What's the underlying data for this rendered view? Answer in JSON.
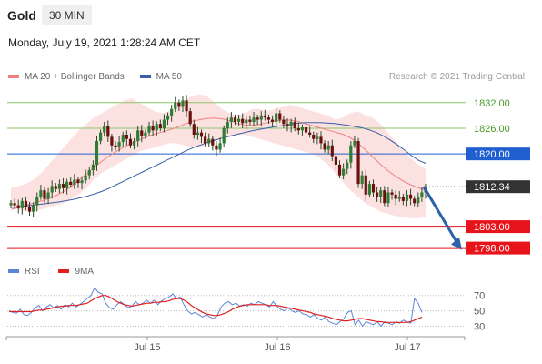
{
  "header": {
    "symbol": "Gold",
    "timeframe": "30 MIN",
    "datetime": "Monday, July 19, 2021 1:28:24 AM CET",
    "credit": "Research © 2021 Trading Central"
  },
  "legend": {
    "bollinger_label": "MA 20 + Bollinger Bands",
    "ma50_label": "MA 50",
    "rsi_label": "RSI",
    "rsi_ma_label": "9MA"
  },
  "colors": {
    "bollinger": "#f08080",
    "ma50": "#3a5fa8",
    "rsi": "#5b86d6",
    "rsi_ma": "#e02020",
    "green_level": "#8cc66a",
    "blue_level": "#1f5fd0",
    "red_level": "#e8141c",
    "current_price": "#333333",
    "arrow": "#2b62a8"
  },
  "chart_data": {
    "type": "candlestick",
    "x_ticks": [
      "Jul 15",
      "Jul 16",
      "Jul 17"
    ],
    "y_range": [
      1796,
      1834.5
    ],
    "levels": [
      {
        "value": 1832.0,
        "label": "1832.00",
        "kind": "resistance"
      },
      {
        "value": 1826.0,
        "label": "1826.00",
        "kind": "resistance"
      },
      {
        "value": 1820.0,
        "label": "1820.00",
        "kind": "pivot"
      },
      {
        "value": 1812.34,
        "label": "1812.34",
        "kind": "current"
      },
      {
        "value": 1803.0,
        "label": "1803.00",
        "kind": "support"
      },
      {
        "value": 1798.0,
        "label": "1798.00",
        "kind": "support"
      }
    ],
    "close": [
      1808.5,
      1808.0,
      1807.3,
      1809.0,
      1807.5,
      1806.5,
      1808.0,
      1810.0,
      1811.5,
      1809.5,
      1811.0,
      1812.5,
      1811.8,
      1813.0,
      1812.0,
      1813.5,
      1812.8,
      1814.0,
      1813.2,
      1813.8,
      1815.0,
      1816.2,
      1817.5,
      1823.0,
      1825.0,
      1826.5,
      1824.0,
      1822.0,
      1821.5,
      1822.8,
      1824.5,
      1823.5,
      1822.0,
      1823.0,
      1825.5,
      1824.2,
      1825.0,
      1826.5,
      1825.5,
      1827.0,
      1826.0,
      1828.0,
      1829.0,
      1830.5,
      1832.0,
      1831.0,
      1832.5,
      1830.0,
      1827.0,
      1824.5,
      1825.0,
      1824.0,
      1822.5,
      1823.5,
      1822.0,
      1821.0,
      1822.5,
      1826.0,
      1827.5,
      1828.5,
      1827.5,
      1828.2,
      1827.2,
      1828.0,
      1827.5,
      1828.5,
      1828.0,
      1829.0,
      1828.5,
      1828.0,
      1827.5,
      1829.5,
      1828.0,
      1827.0,
      1826.5,
      1827.5,
      1826.0,
      1825.5,
      1826.2,
      1825.0,
      1824.5,
      1823.5,
      1824.0,
      1822.5,
      1821.0,
      1822.0,
      1819.5,
      1817.5,
      1815.0,
      1816.5,
      1818.0,
      1822.0,
      1823.0,
      1813.0,
      1815.0,
      1810.5,
      1813.0,
      1811.0,
      1810.0,
      1811.5,
      1808.5,
      1811.0,
      1810.5,
      1809.5,
      1810.0,
      1809.0,
      1810.5,
      1809.5,
      1808.5,
      1810.0,
      1811.0,
      1812.34
    ],
    "ma50": [
      1807.5,
      1807.6,
      1807.8,
      1808.0,
      1808.2,
      1808.4,
      1808.6,
      1808.8,
      1809.1,
      1809.4,
      1809.8,
      1810.2,
      1810.7,
      1811.3,
      1812.0,
      1812.8,
      1813.6,
      1814.4,
      1815.2,
      1816.0,
      1816.8,
      1817.6,
      1818.4,
      1819.2,
      1820.0,
      1820.8,
      1821.5,
      1822.1,
      1822.7,
      1823.2,
      1823.7,
      1824.1,
      1824.5,
      1824.9,
      1825.3,
      1825.6,
      1825.9,
      1826.2,
      1826.5,
      1826.7,
      1827.0,
      1827.2,
      1827.3,
      1827.3,
      1827.3,
      1827.2,
      1827.1,
      1826.9,
      1826.7,
      1826.4,
      1826.1,
      1825.6,
      1825.0,
      1824.2,
      1823.2,
      1822.1,
      1820.9,
      1819.6,
      1818.5,
      1817.8
    ],
    "ma20": [
      1807.0,
      1807.5,
      1808.0,
      1808.5,
      1809.0,
      1809.6,
      1810.3,
      1811.2,
      1812.4,
      1813.8,
      1815.3,
      1816.8,
      1818.2,
      1819.5,
      1820.6,
      1821.6,
      1822.5,
      1823.3,
      1824.0,
      1824.6,
      1825.1,
      1825.6,
      1826.2,
      1826.9,
      1827.6,
      1828.0,
      1828.3,
      1828.4,
      1828.2,
      1827.8,
      1827.2,
      1826.8,
      1826.7,
      1826.9,
      1827.3,
      1827.7,
      1827.9,
      1827.9,
      1827.6,
      1827.1,
      1826.6,
      1826.1,
      1825.6,
      1825.1,
      1824.6,
      1823.8,
      1822.6,
      1821.0,
      1819.3,
      1817.6,
      1816.1,
      1814.8,
      1813.7,
      1812.8,
      1812.1,
      1811.5
    ],
    "bb_upper": [
      1812.0,
      1812.5,
      1813.0,
      1814.0,
      1815.5,
      1817.5,
      1819.5,
      1821.5,
      1823.5,
      1825.5,
      1827.0,
      1828.5,
      1829.5,
      1830.5,
      1831.5,
      1832.5,
      1833.0,
      1832.0,
      1831.0,
      1830.0,
      1829.5,
      1830.0,
      1831.0,
      1832.5,
      1833.5,
      1834.0,
      1833.5,
      1832.0,
      1830.5,
      1829.5,
      1829.0,
      1829.5,
      1830.5,
      1830.5,
      1830.0,
      1830.5,
      1831.0,
      1831.5,
      1831.0,
      1830.5,
      1830.0,
      1829.5,
      1829.0,
      1828.0,
      1828.5,
      1829.5,
      1830.0,
      1829.0,
      1828.5,
      1827.0,
      1825.0,
      1823.0,
      1821.0,
      1819.0,
      1817.5,
      1816.5
    ],
    "bb_lower": [
      1807.5,
      1807.0,
      1806.5,
      1806.5,
      1807.0,
      1807.5,
      1808.0,
      1808.5,
      1809.5,
      1810.5,
      1812.0,
      1814.0,
      1815.5,
      1816.5,
      1817.5,
      1818.5,
      1819.5,
      1820.5,
      1821.0,
      1821.5,
      1822.0,
      1822.5,
      1822.5,
      1822.0,
      1821.5,
      1821.5,
      1822.0,
      1823.0,
      1823.5,
      1824.0,
      1824.5,
      1824.5,
      1824.0,
      1823.5,
      1823.0,
      1822.5,
      1822.0,
      1821.5,
      1821.0,
      1820.5,
      1820.0,
      1819.0,
      1817.5,
      1815.5,
      1813.5,
      1811.5,
      1810.0,
      1808.5,
      1807.5,
      1806.5,
      1806.0,
      1805.5,
      1805.2,
      1805.0,
      1805.0,
      1805.2
    ],
    "rsi_range": [
      20,
      85
    ],
    "rsi_levels": [
      70,
      50,
      30
    ],
    "rsi_labels": [
      "70",
      "50",
      "30"
    ],
    "rsi": [
      50,
      48,
      47,
      52,
      45,
      44,
      48,
      54,
      57,
      50,
      55,
      58,
      54,
      57,
      52,
      58,
      55,
      60,
      55,
      58,
      62,
      66,
      70,
      80,
      74,
      72,
      60,
      54,
      52,
      58,
      62,
      58,
      54,
      56,
      62,
      58,
      60,
      64,
      60,
      64,
      58,
      63,
      66,
      68,
      72,
      66,
      68,
      58,
      50,
      46,
      48,
      45,
      42,
      45,
      42,
      40,
      44,
      55,
      60,
      62,
      58,
      60,
      56,
      58,
      56,
      60,
      58,
      62,
      60,
      58,
      55,
      62,
      56,
      52,
      50,
      54,
      50,
      48,
      50,
      46,
      45,
      42,
      45,
      40,
      38,
      42,
      36,
      34,
      32,
      36,
      40,
      48,
      50,
      32,
      38,
      30,
      36,
      34,
      32,
      36,
      30,
      36,
      34,
      32,
      36,
      34,
      38,
      36,
      34,
      66,
      60,
      48
    ],
    "rsi_ma": [
      49,
      49,
      49,
      49,
      49,
      49,
      49,
      50,
      51,
      51,
      52,
      53,
      54,
      55,
      56,
      56,
      57,
      57,
      57,
      58,
      59,
      60,
      63,
      66,
      68,
      70,
      70,
      68,
      65,
      62,
      60,
      58,
      57,
      56,
      57,
      58,
      59,
      60,
      60,
      61,
      61,
      62,
      62,
      63,
      65,
      66,
      66,
      64,
      61,
      57,
      54,
      51,
      48,
      46,
      45,
      44,
      44,
      45,
      47,
      49,
      52,
      54,
      56,
      57,
      58,
      58,
      58,
      58,
      58,
      58,
      57,
      57,
      57,
      56,
      55,
      54,
      53,
      52,
      51,
      50,
      49,
      48,
      46,
      45,
      44,
      43,
      42,
      40,
      39,
      38,
      37,
      37,
      38,
      39,
      40,
      40,
      39,
      38,
      37,
      36,
      36,
      35,
      35,
      35,
      35,
      35,
      35,
      35,
      36,
      38,
      40,
      42
    ]
  }
}
